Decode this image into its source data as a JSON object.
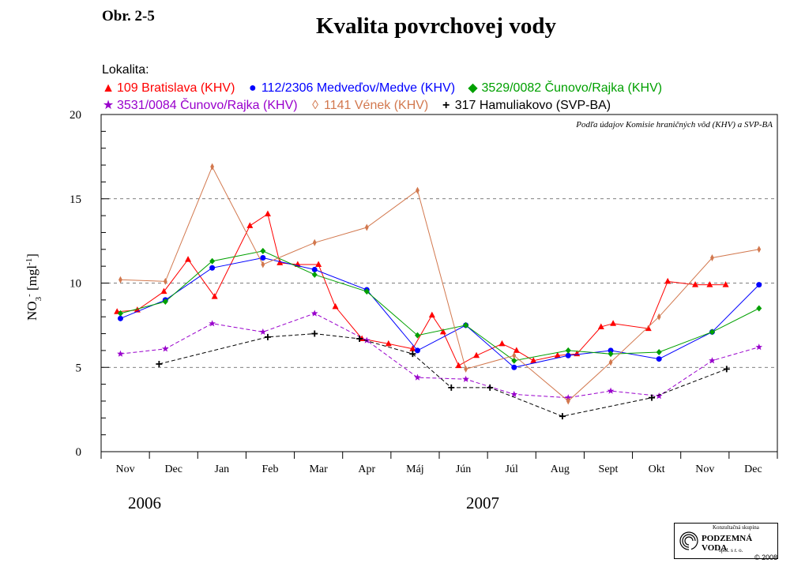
{
  "figure_label": "Obr. 2-5",
  "title": "Kvalita povrchovej vody",
  "legend_heading": "Lokalita:",
  "source_note": "Podľa údajov Komisie hraničných vôd (KHV) a SVP-BA",
  "years": [
    "2006",
    "2007"
  ],
  "logo": {
    "line1": "Konzultačná skupina",
    "name": "PODZEMNÁ VODA",
    "line3": "spol. s r. o."
  },
  "copyright": "© 2008",
  "chart_data": {
    "type": "line",
    "ylabel": "NO3- [mg l-1]",
    "ylabel_parts": {
      "base": "NO",
      "sub": "3",
      "sup": "-",
      "unit": " [mgl",
      "unit_sup": "-1",
      "close": "]"
    },
    "ylim": [
      0,
      20
    ],
    "yticks": [
      0,
      5,
      10,
      15,
      20
    ],
    "grid_y": [
      5,
      10,
      15
    ],
    "categories": [
      "Nov",
      "Dec",
      "Jan",
      "Feb",
      "Mar",
      "Apr",
      "Máj",
      "Jún",
      "Júl",
      "Aug",
      "Sept",
      "Okt",
      "Nov",
      "Dec"
    ],
    "x_range": [
      0,
      14
    ],
    "legend_placement": "top",
    "series": [
      {
        "name": "109 Bratislava (KHV)",
        "color": "#ff0000",
        "marker": "triangle",
        "dash": false,
        "x": [
          0.33,
          0.75,
          1.3,
          1.8,
          2.35,
          3.08,
          3.45,
          3.7,
          4.07,
          4.5,
          4.85,
          5.4,
          5.95,
          6.45,
          6.85,
          7.08,
          7.4,
          7.77,
          8.3,
          8.6,
          8.95,
          9.45,
          9.85,
          10.35,
          10.6,
          11.33,
          11.73,
          12.3,
          12.6,
          12.93
        ],
        "y": [
          8.3,
          8.4,
          9.5,
          11.4,
          9.2,
          13.4,
          14.1,
          11.2,
          11.1,
          11.1,
          8.6,
          6.7,
          6.4,
          6.1,
          8.1,
          7.1,
          5.1,
          5.7,
          6.4,
          6.0,
          5.4,
          5.7,
          5.8,
          7.4,
          7.6,
          7.3,
          10.1,
          9.9,
          9.9,
          9.9
        ]
      },
      {
        "name": "112/2306 Medveďov/Medve (KHV)",
        "color": "#0000ff",
        "marker": "circle",
        "dash": false,
        "x": [
          0.4,
          1.33,
          2.3,
          3.35,
          4.42,
          5.5,
          6.55,
          7.55,
          8.55,
          9.67,
          10.55,
          11.55,
          12.65,
          13.62
        ],
        "y": [
          7.9,
          9.0,
          10.9,
          11.5,
          10.8,
          9.6,
          6.0,
          7.5,
          5.0,
          5.7,
          6.0,
          5.5,
          7.1,
          9.9
        ]
      },
      {
        "name": "3529/0082 Čunovo/Rajka (KHV)",
        "color": "#00a000",
        "marker": "diamond",
        "dash": false,
        "x": [
          0.4,
          1.33,
          2.3,
          3.35,
          4.42,
          5.5,
          6.55,
          7.55,
          8.55,
          9.67,
          10.55,
          11.55,
          12.65,
          13.62
        ],
        "y": [
          8.2,
          8.9,
          11.3,
          11.9,
          10.5,
          9.5,
          6.9,
          7.5,
          5.4,
          6.0,
          5.8,
          5.9,
          7.1,
          8.5
        ]
      },
      {
        "name": "3531/0084 Čunovo/Rajka (KHV)",
        "color": "#9900cc",
        "marker": "star",
        "dash": true,
        "x": [
          0.4,
          1.33,
          2.3,
          3.35,
          4.42,
          5.5,
          6.55,
          7.55,
          8.55,
          9.67,
          10.55,
          11.55,
          12.65,
          13.62
        ],
        "y": [
          5.8,
          6.1,
          7.6,
          7.1,
          8.2,
          6.6,
          4.4,
          4.3,
          3.4,
          3.2,
          3.6,
          3.3,
          5.4,
          6.2
        ]
      },
      {
        "name": "1141 Vének (KHV)",
        "color": "#d2784e",
        "marker": "thin-diamond",
        "dash": false,
        "x": [
          0.4,
          1.33,
          2.3,
          3.35,
          4.42,
          5.5,
          6.55,
          7.55,
          8.55,
          9.67,
          10.55,
          11.55,
          12.65,
          13.62
        ],
        "y": [
          10.2,
          10.1,
          16.9,
          11.1,
          12.4,
          13.3,
          15.5,
          4.9,
          5.7,
          3.0,
          5.3,
          8.0,
          11.5,
          12.0
        ]
      },
      {
        "name": "317 Hamuliakovo (SVP-BA)",
        "color": "#000000",
        "marker": "plus",
        "dash": true,
        "x": [
          1.2,
          3.45,
          4.42,
          5.35,
          6.45,
          7.25,
          8.05,
          9.55,
          11.4,
          12.95
        ],
        "y": [
          5.2,
          6.8,
          7.0,
          6.7,
          5.8,
          3.8,
          3.8,
          2.1,
          3.2,
          4.9
        ]
      }
    ]
  }
}
